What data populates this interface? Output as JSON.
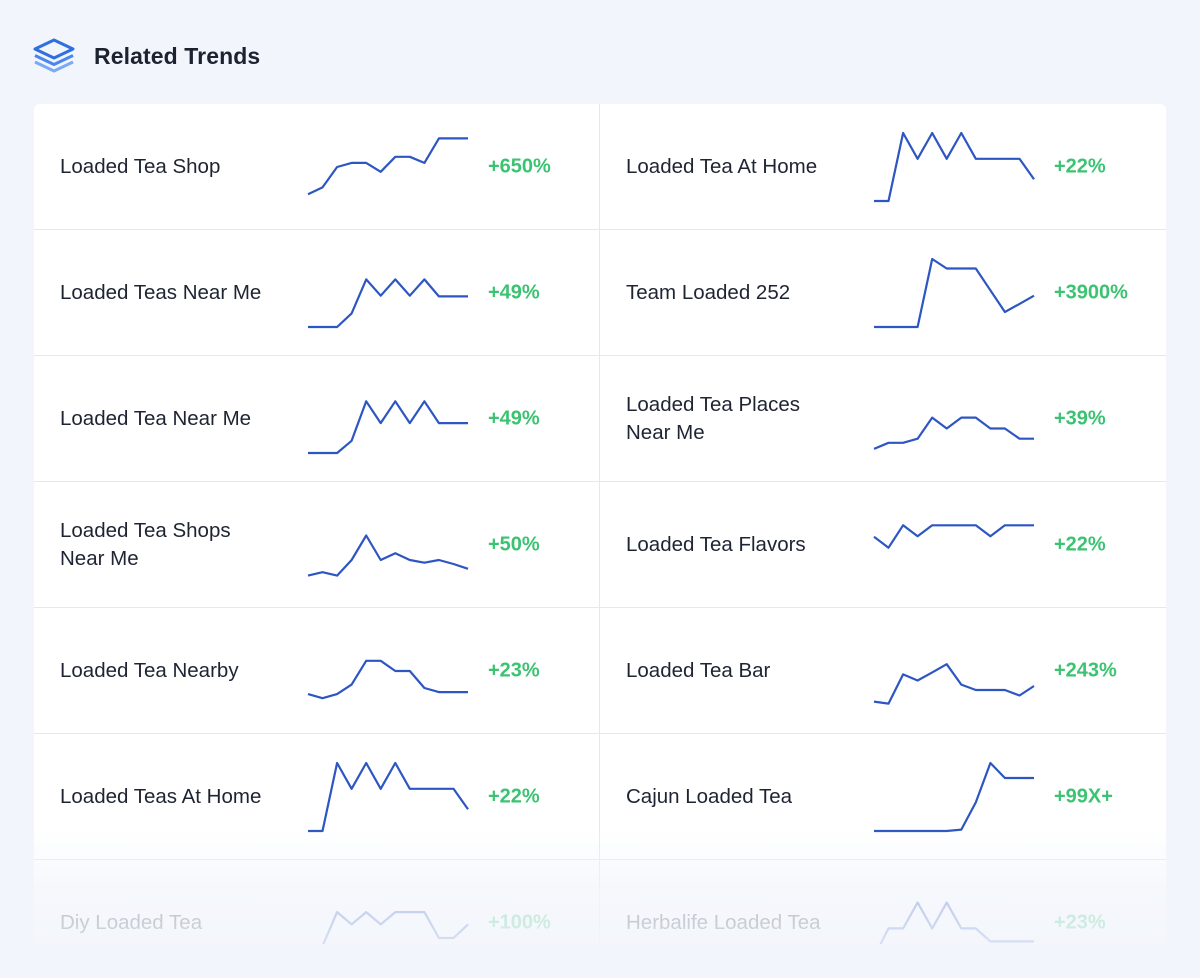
{
  "header": {
    "title": "Related Trends",
    "icon": "layers-icon"
  },
  "colors": {
    "sparkline": "#2d56c2",
    "growth": "#3cc372",
    "icon": "#2f6fde"
  },
  "trends": [
    {
      "name": "Loaded Tea Shop",
      "growth": "+650%",
      "spark": [
        1,
        2,
        5,
        5.6,
        5.6,
        4.3,
        6.5,
        6.5,
        5.6,
        9.2,
        9.2,
        9.2
      ]
    },
    {
      "name": "Loaded Tea At Home",
      "growth": "+22%",
      "spark": [
        0,
        0,
        10,
        6.2,
        10,
        6.2,
        10,
        6.2,
        6.2,
        6.2,
        6.2,
        3.2
      ]
    },
    {
      "name": "Loaded Teas Near Me",
      "growth": "+49%",
      "spark": [
        0,
        0,
        0,
        2,
        7,
        4.6,
        7,
        4.6,
        7,
        4.5,
        4.5,
        4.5
      ]
    },
    {
      "name": "Team Loaded 252",
      "growth": "+3900%",
      "spark": [
        0,
        0,
        0,
        0,
        10,
        8.6,
        8.6,
        8.6,
        5.4,
        2.2,
        3.4,
        4.6
      ]
    },
    {
      "name": "Loaded Tea Near Me",
      "growth": "+49%",
      "spark": [
        0,
        0,
        0,
        1.8,
        7.6,
        4.4,
        7.6,
        4.4,
        7.6,
        4.4,
        4.4,
        4.4
      ]
    },
    {
      "name": "Loaded Tea Places Near Me",
      "growth": "+39%",
      "spark": [
        0.6,
        1.5,
        1.5,
        2.1,
        5.2,
        3.6,
        5.2,
        5.2,
        3.6,
        3.6,
        2.1,
        2.1
      ]
    },
    {
      "name": "Loaded Tea Shops Near Me",
      "growth": "+50%",
      "spark": [
        0.5,
        1.0,
        0.5,
        2.8,
        6.4,
        2.8,
        3.8,
        2.8,
        2.4,
        2.8,
        2.2,
        1.5
      ]
    },
    {
      "name": "Loaded Tea Flavors",
      "growth": "+22%",
      "spark": [
        6.2,
        4.6,
        7.9,
        6.3,
        7.9,
        7.9,
        7.9,
        7.9,
        6.3,
        7.9,
        7.9,
        7.9
      ]
    },
    {
      "name": "Loaded Tea Nearby",
      "growth": "+23%",
      "spark": [
        1.6,
        1.0,
        1.6,
        3.0,
        6.5,
        6.5,
        5.0,
        5.0,
        2.5,
        1.9,
        1.9,
        1.9
      ]
    },
    {
      "name": "Loaded Tea Bar",
      "growth": "+243%",
      "spark": [
        0.5,
        0.2,
        4.5,
        3.6,
        4.8,
        6.0,
        3.0,
        2.2,
        2.2,
        2.2,
        1.4,
        2.8
      ]
    },
    {
      "name": "Loaded Teas At Home",
      "growth": "+22%",
      "spark": [
        0,
        0,
        10,
        6.2,
        10,
        6.2,
        10,
        6.2,
        6.2,
        6.2,
        6.2,
        3.2
      ]
    },
    {
      "name": "Cajun Loaded Tea",
      "growth": "+99X+",
      "spark": [
        0,
        0,
        0,
        0,
        0,
        0,
        0.2,
        4.2,
        10,
        7.8,
        7.8,
        7.8
      ]
    },
    {
      "name": "Diy Loaded Tea",
      "growth": "+100%",
      "spark": [
        0,
        1.6,
        6.6,
        4.8,
        6.6,
        4.8,
        6.6,
        6.6,
        6.6,
        2.8,
        2.8,
        4.8
      ]
    },
    {
      "name": "Herbalife Loaded Tea",
      "growth": "+23%",
      "spark": [
        0,
        4.2,
        4.2,
        8,
        4.2,
        8,
        4.2,
        4.2,
        2.3,
        2.3,
        2.3,
        2.3
      ]
    }
  ]
}
